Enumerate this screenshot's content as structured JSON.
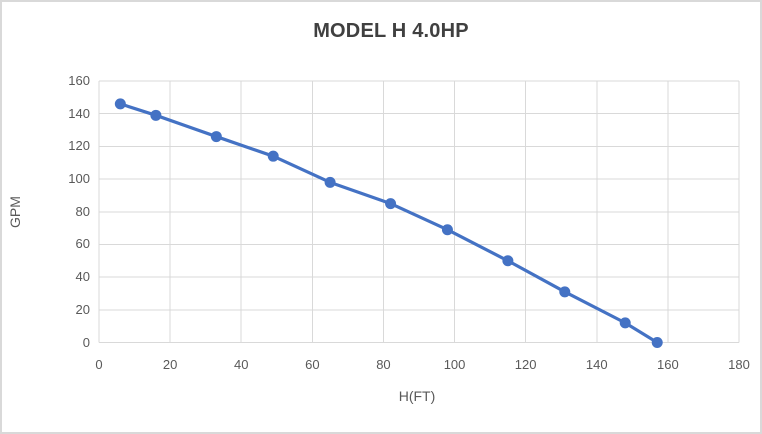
{
  "chart": {
    "title": "MODEL H 4.0HP",
    "x_axis_title": "H(FT)",
    "y_axis_title": "GPM"
  },
  "chart_data": {
    "type": "line",
    "title": "MODEL H 4.0HP",
    "xlabel": "H(FT)",
    "ylabel": "GPM",
    "x": [
      6,
      16,
      33,
      49,
      65,
      82,
      98,
      115,
      131,
      148,
      157
    ],
    "y": [
      146,
      139,
      126,
      114,
      98,
      85,
      69,
      50,
      31,
      12,
      0
    ],
    "x_ticks": [
      0,
      20,
      40,
      60,
      80,
      100,
      120,
      140,
      160,
      180
    ],
    "y_ticks": [
      0,
      20,
      40,
      60,
      80,
      100,
      120,
      140,
      160
    ],
    "xlim": [
      0,
      180
    ],
    "ylim": [
      0,
      160
    ],
    "grid": true,
    "legend": false
  },
  "style": {
    "line_color": "#4472C4",
    "marker_color": "#4472C4",
    "grid_color": "#d9d9d9",
    "tick_color": "#595959",
    "title_color": "#404040",
    "background": "#ffffff"
  }
}
